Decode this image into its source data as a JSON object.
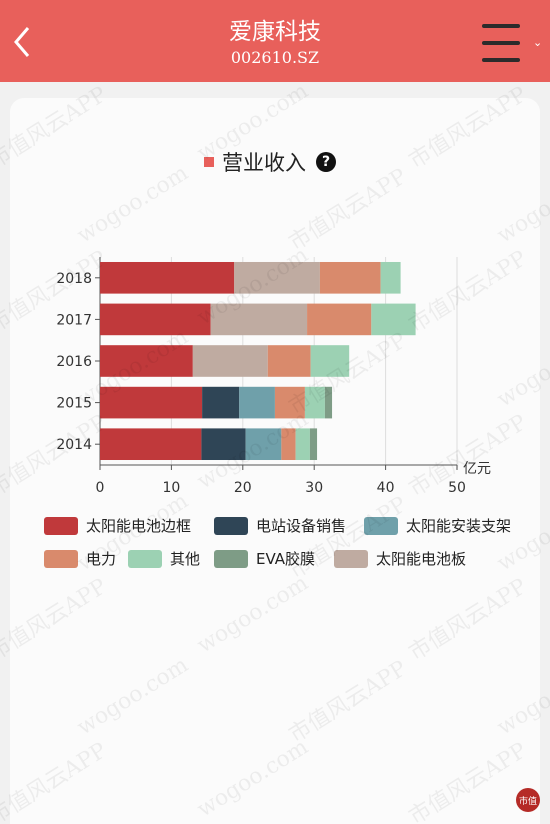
{
  "header": {
    "title": "爱康科技",
    "subtitle": "002610.SZ"
  },
  "section": {
    "title": "营业收入",
    "help": "?"
  },
  "watermark": {
    "texts": [
      "市值风云APP",
      "wogoo.com"
    ]
  },
  "colors": {
    "header_bg": "#e8605b",
    "accent": "#e8605b"
  },
  "chart_data": {
    "type": "bar",
    "orientation": "horizontal",
    "stacked": true,
    "unit": "亿元",
    "categories": [
      "2018",
      "2017",
      "2016",
      "2015",
      "2014"
    ],
    "xlim": [
      0,
      50
    ],
    "xticks": [
      "0",
      "10",
      "20",
      "30",
      "40",
      "50"
    ],
    "series": [
      {
        "name": "太阳能电池边框",
        "color": "#c0393b",
        "values": [
          18.8,
          15.5,
          13.0,
          14.3,
          14.2
        ]
      },
      {
        "name": "电站设备销售",
        "color": "#2f4556",
        "values": [
          0,
          0,
          0,
          5.2,
          6.2
        ]
      },
      {
        "name": "太阳能安装支架",
        "color": "#6fa0aa",
        "values": [
          0,
          0,
          0,
          5.0,
          5.0
        ]
      },
      {
        "name": "电力",
        "color": "#d98a6c",
        "values": [
          8.5,
          9.0,
          6.0,
          4.2,
          2.0
        ]
      },
      {
        "name": "其他",
        "color": "#9cd1b3",
        "values": [
          2.8,
          6.2,
          5.4,
          2.8,
          2.0
        ]
      },
      {
        "name": "EVA胶膜",
        "color": "#7e9c86",
        "values": [
          0,
          0,
          0,
          1.0,
          1.0
        ]
      },
      {
        "name": "太阳能电池板",
        "color": "#bfaba1",
        "values": [
          12.0,
          13.5,
          10.5,
          0,
          0
        ]
      }
    ],
    "segment_order": [
      [
        "太阳能电池边框",
        "太阳能电池板",
        "电力",
        "太阳能安装支架",
        "其他"
      ],
      [
        "太阳能电池边框",
        "太阳能电池板",
        "电力",
        "其他",
        "太阳能安装支架"
      ],
      [
        "太阳能电池边框",
        "太阳能电池板",
        "电力",
        "其他",
        "太阳能安装支架"
      ],
      [
        "太阳能电池边框",
        "电站设备销售",
        "太阳能安装支架",
        "电力",
        "其他",
        "EVA胶膜"
      ],
      [
        "太阳能电池边框",
        "电站设备销售",
        "太阳能安装支架",
        "电力",
        "其他",
        "EVA胶膜"
      ]
    ],
    "grid": true,
    "legend": "bottom"
  }
}
